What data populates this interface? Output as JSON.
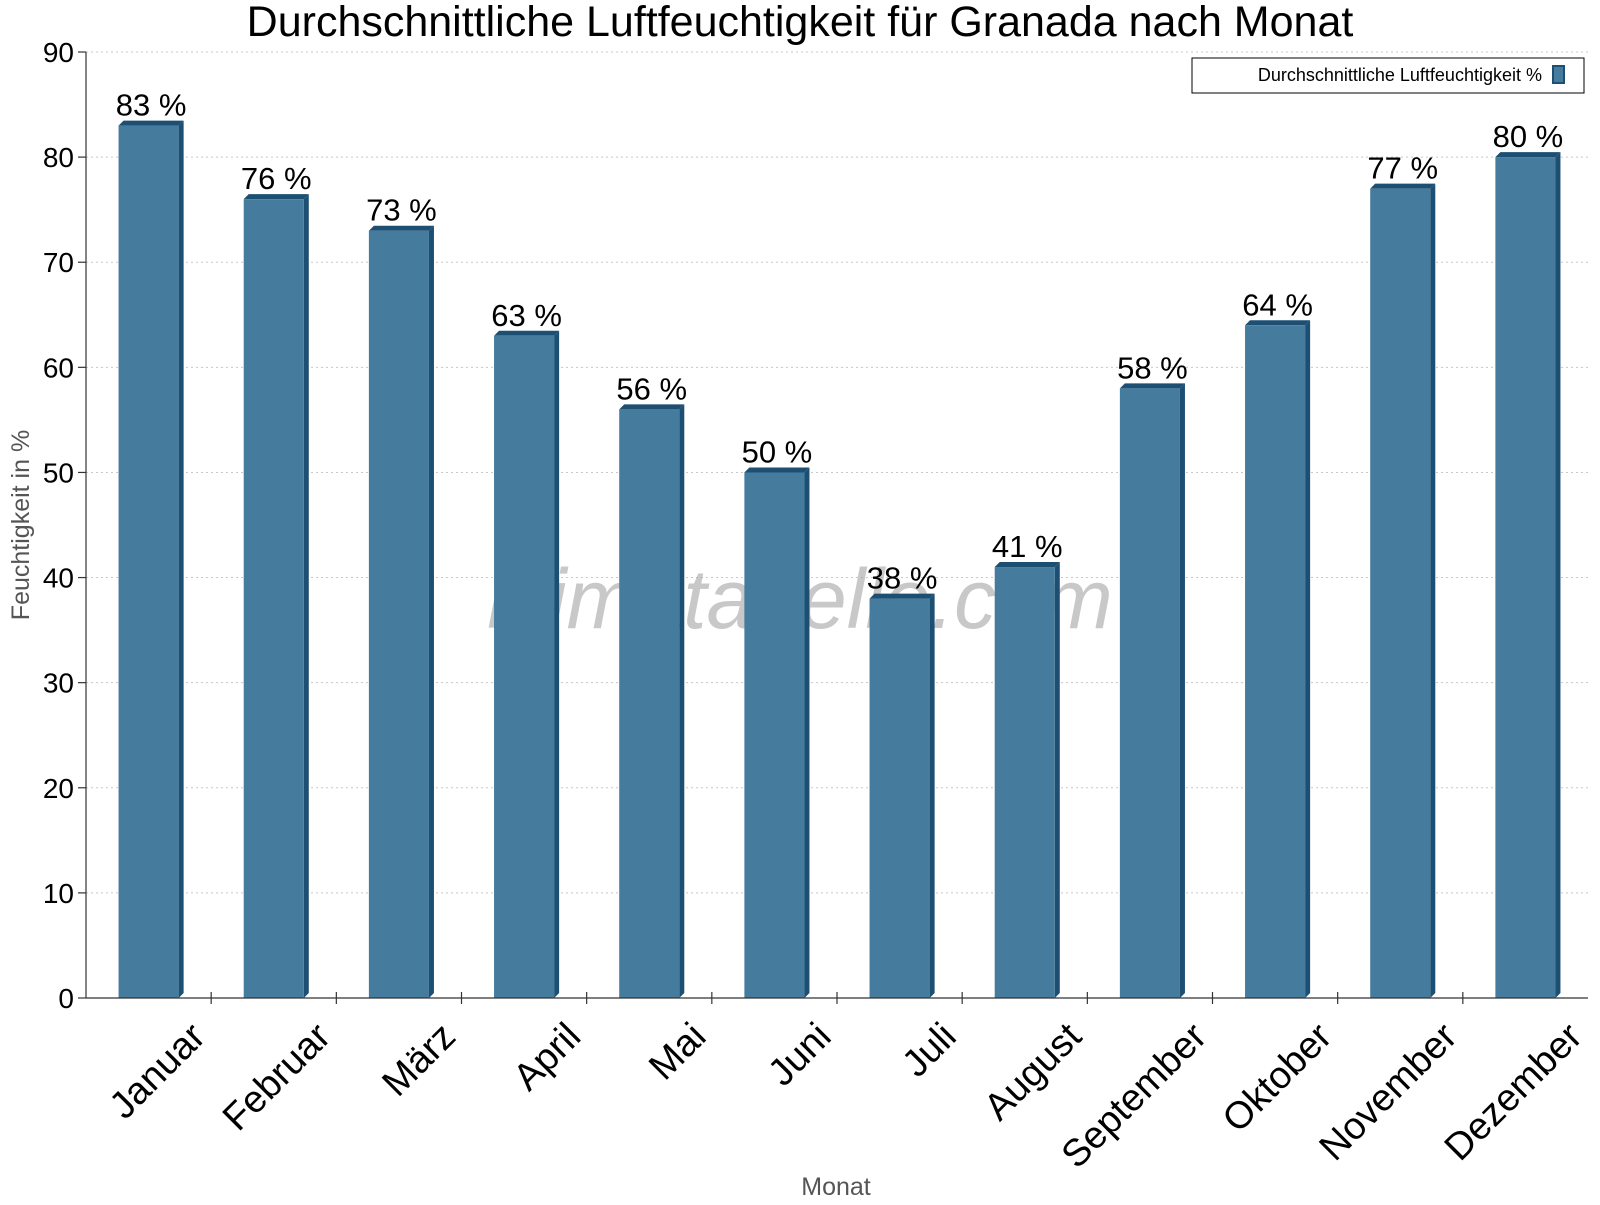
{
  "colors": {
    "bar_face": "#457b9d",
    "bar_side": "#1d4f73",
    "bar_top": "#1d4f73"
  },
  "watermark": "klimatabelle.com",
  "legend": {
    "label": "Durchschnittliche Luftfeuchtigkeit %",
    "placement": "top-right"
  },
  "chart_data": {
    "type": "bar",
    "title": "Durchschnittliche Luftfeuchtigkeit für Granada nach Monat",
    "xlabel": "Monat",
    "ylabel": "Feuchtigkeit in %",
    "ylim": [
      0,
      90
    ],
    "yticks": [
      0,
      10,
      20,
      30,
      40,
      50,
      60,
      70,
      80,
      90
    ],
    "grid": true,
    "categories": [
      "Januar",
      "Februar",
      "März",
      "April",
      "Mai",
      "Juni",
      "Juli",
      "August",
      "September",
      "Oktober",
      "November",
      "Dezember"
    ],
    "series": [
      {
        "name": "Durchschnittliche Luftfeuchtigkeit %",
        "values": [
          83,
          76,
          73,
          63,
          56,
          50,
          38,
          41,
          58,
          64,
          77,
          80
        ],
        "labels": [
          "83 %",
          "76 %",
          "73 %",
          "63 %",
          "56 %",
          "50 %",
          "38 %",
          "41 %",
          "58 %",
          "64 %",
          "77 %",
          "80 %"
        ]
      }
    ]
  }
}
